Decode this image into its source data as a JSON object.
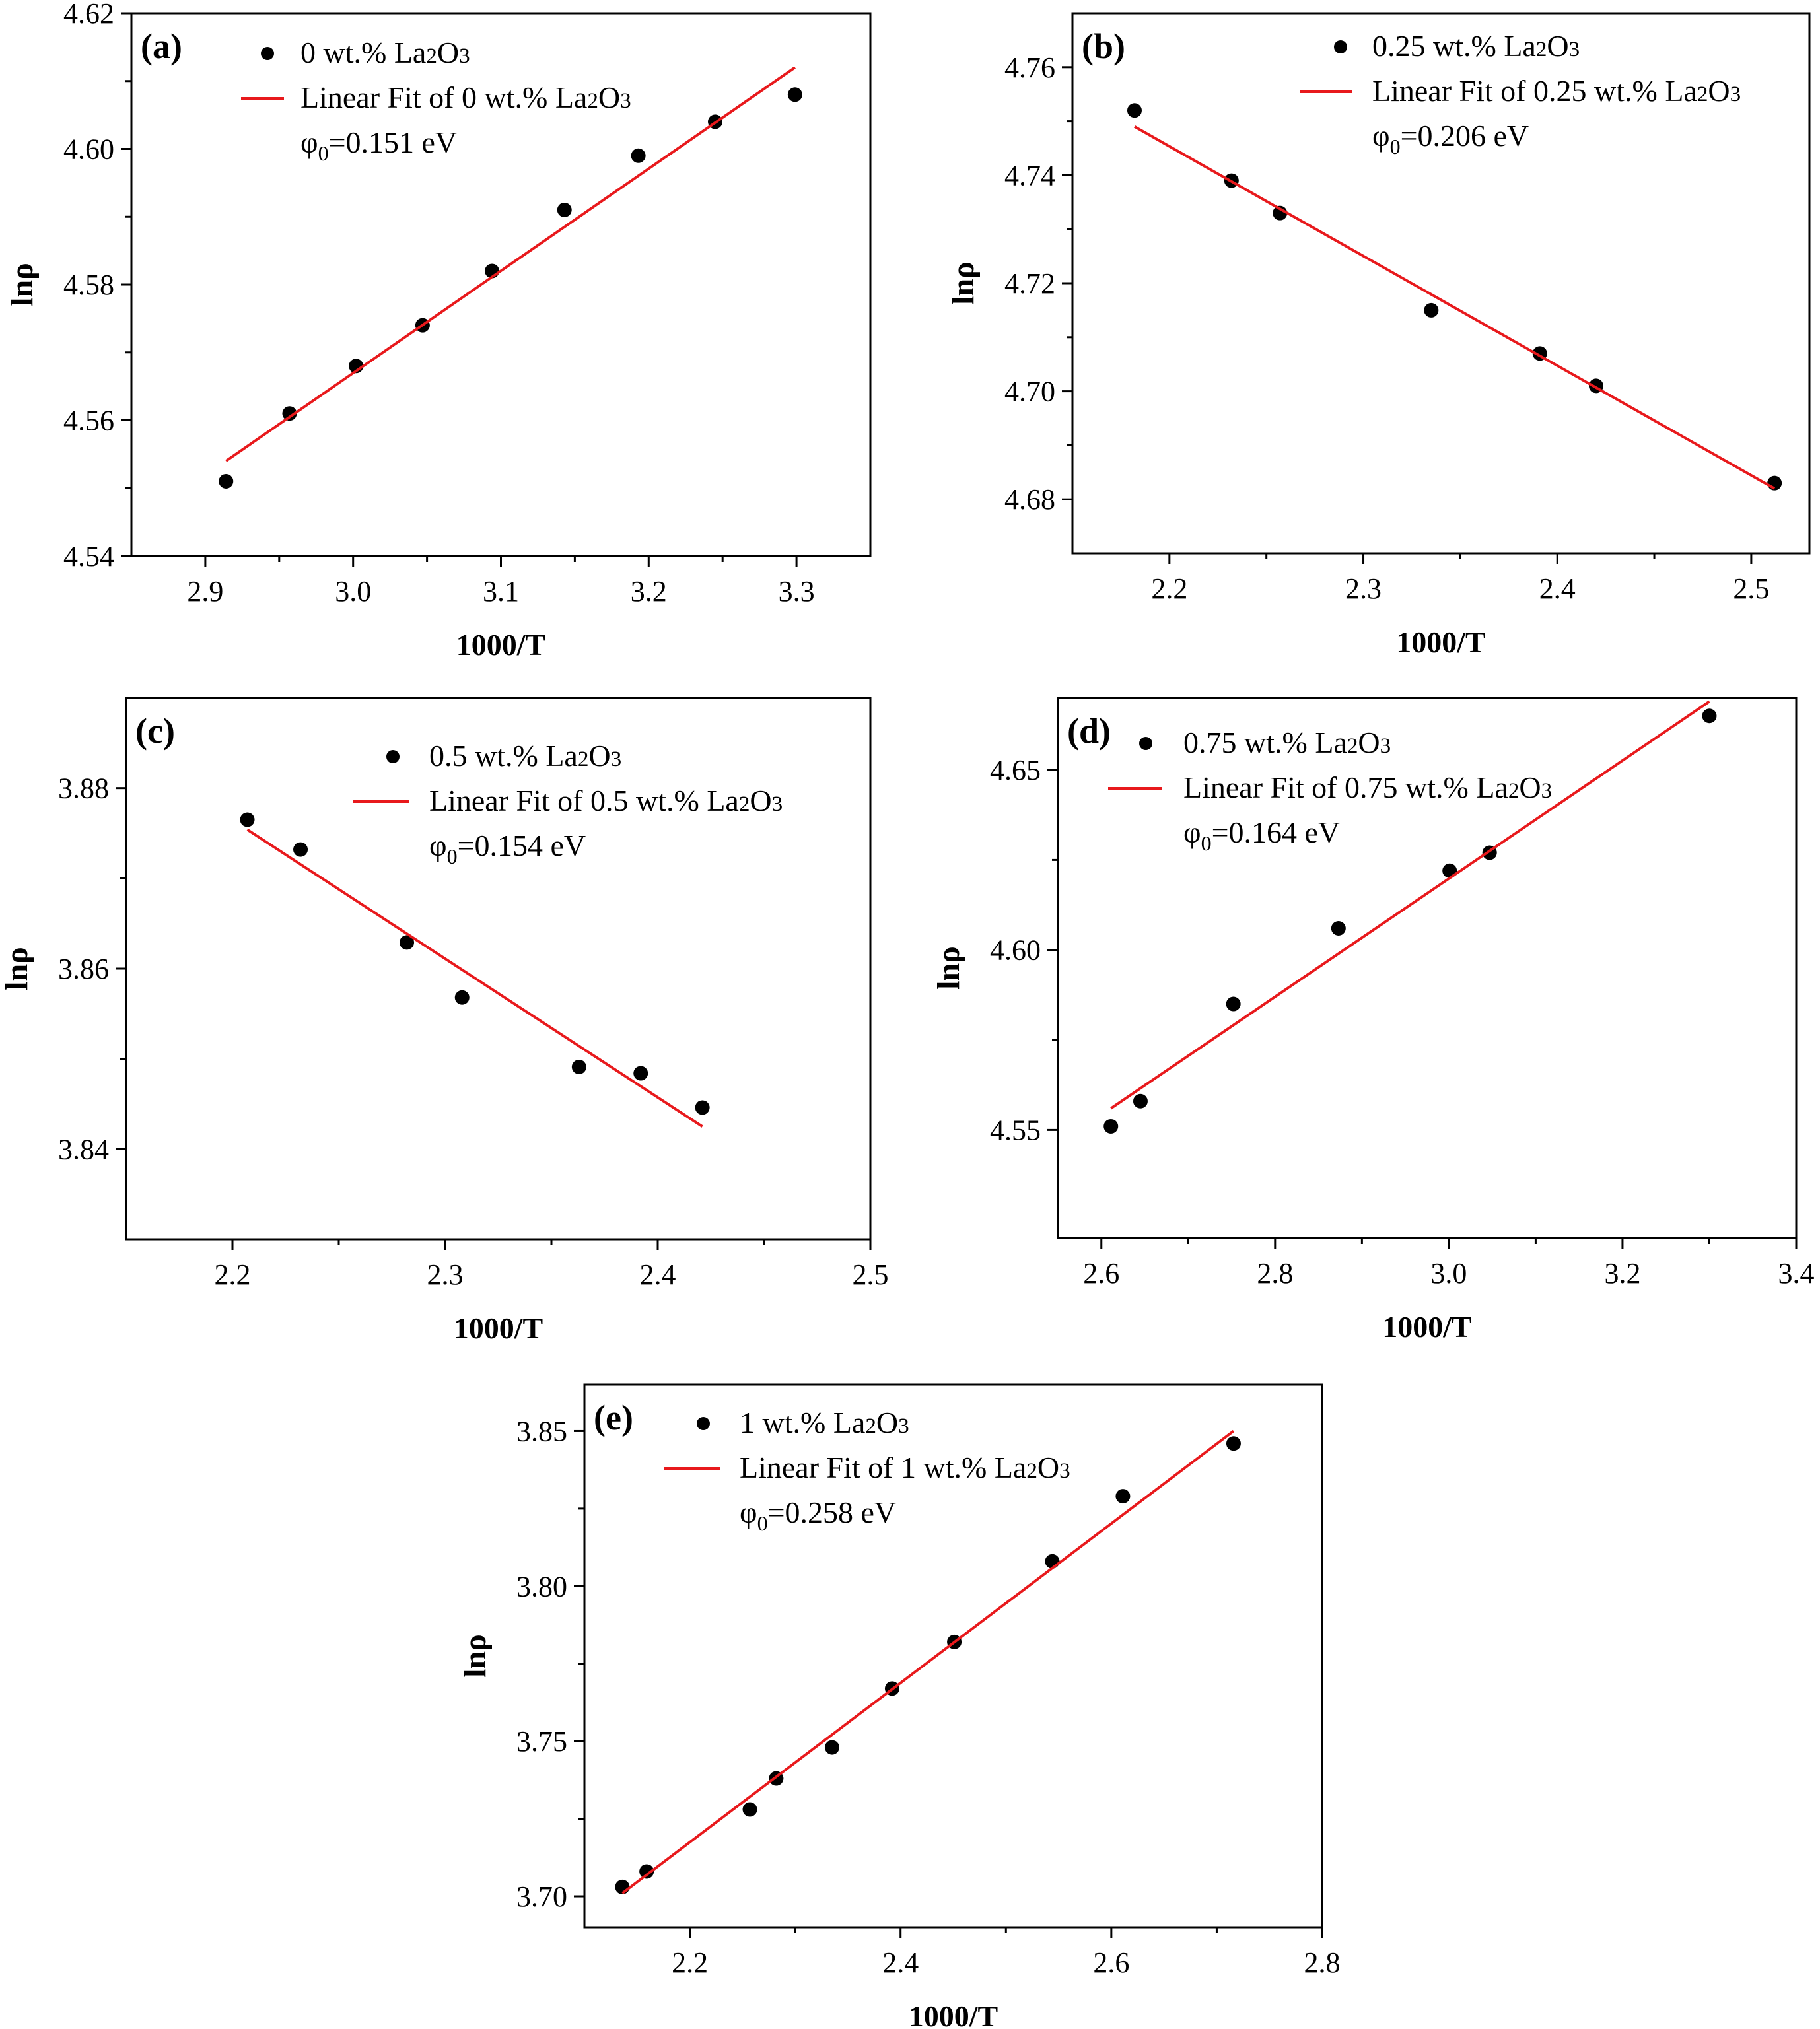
{
  "chart_data": [
    {
      "type": "scatter",
      "panel_label": "(a)",
      "xlabel": "1000/T",
      "ylabel": "lnρ",
      "xlim": [
        2.85,
        3.35
      ],
      "ylim": [
        4.54,
        4.62
      ],
      "x_ticks": [
        2.9,
        3.0,
        3.1,
        3.2,
        3.3
      ],
      "x_tick_labels": [
        "2.9",
        "3.0",
        "3.1",
        "3.2",
        "3.3"
      ],
      "y_ticks": [
        4.54,
        4.56,
        4.58,
        4.6,
        4.62
      ],
      "y_tick_labels": [
        "4.54",
        "4.56",
        "4.58",
        "4.60",
        "4.62"
      ],
      "series": [
        {
          "name": "0 wt.% La2O3",
          "kind": "scatter",
          "color": "#000000",
          "x": [
            2.914,
            2.957,
            3.002,
            3.047,
            3.094,
            3.143,
            3.193,
            3.245,
            3.299
          ],
          "y": [
            4.551,
            4.561,
            4.568,
            4.574,
            4.582,
            4.591,
            4.599,
            4.604,
            4.608
          ]
        },
        {
          "name": "Linear Fit of  0 wt.% La2O3",
          "kind": "line",
          "color": "#e8191c",
          "x": [
            2.914,
            3.299
          ],
          "y": [
            4.554,
            4.612
          ]
        }
      ],
      "annotation": "φ0=0.151 eV",
      "legend_position": "top-left"
    },
    {
      "type": "scatter",
      "panel_label": "(b)",
      "xlabel": "1000/T",
      "ylabel": "lnρ",
      "xlim": [
        2.15,
        2.53
      ],
      "ylim": [
        4.67,
        4.77
      ],
      "x_ticks": [
        2.2,
        2.3,
        2.4,
        2.5
      ],
      "x_tick_labels": [
        "2.2",
        "2.3",
        "2.4",
        "2.5"
      ],
      "y_ticks": [
        4.68,
        4.7,
        4.72,
        4.74,
        4.76
      ],
      "y_tick_labels": [
        "4.68",
        "4.70",
        "4.72",
        "4.74",
        "4.76"
      ],
      "series": [
        {
          "name": "0.25 wt.% La2O3",
          "kind": "scatter",
          "color": "#000000",
          "x": [
            2.182,
            2.232,
            2.257,
            2.335,
            2.391,
            2.42,
            2.512
          ],
          "y": [
            4.752,
            4.739,
            4.733,
            4.715,
            4.707,
            4.701,
            4.683
          ]
        },
        {
          "name": "Linear Fit of  0.25 wt.% La2O3",
          "kind": "line",
          "color": "#e8191c",
          "x": [
            2.182,
            2.512
          ],
          "y": [
            4.749,
            4.682
          ]
        }
      ],
      "annotation": "φ0=0.206 eV",
      "legend_position": "top-right"
    },
    {
      "type": "scatter",
      "panel_label": "(c)",
      "xlabel": "1000/T",
      "ylabel": "lnρ",
      "xlim": [
        2.15,
        2.5
      ],
      "ylim": [
        3.83,
        3.89
      ],
      "x_ticks": [
        2.2,
        2.3,
        2.4,
        2.5
      ],
      "x_tick_labels": [
        "2.2",
        "2.3",
        "2.4",
        "2.5"
      ],
      "y_ticks": [
        3.84,
        3.86,
        3.88
      ],
      "y_tick_labels": [
        "3.84",
        "3.86",
        "3.88"
      ],
      "series": [
        {
          "name": "0.5 wt.% La2O3",
          "kind": "scatter",
          "color": "#000000",
          "x": [
            2.207,
            2.232,
            2.282,
            2.308,
            2.363,
            2.392,
            2.421
          ],
          "y": [
            3.8765,
            3.8732,
            3.8629,
            3.8568,
            3.8491,
            3.8484,
            3.8446
          ]
        },
        {
          "name": "Linear Fit of  0.5 wt.% La2O3",
          "kind": "line",
          "color": "#e8191c",
          "x": [
            2.207,
            2.421
          ],
          "y": [
            3.8754,
            3.8425
          ]
        }
      ],
      "annotation": "φ0=0.154 eV",
      "legend_position": "top-right"
    },
    {
      "type": "scatter",
      "panel_label": "(d)",
      "xlabel": "1000/T",
      "ylabel": "lnρ",
      "xlim": [
        2.55,
        3.4
      ],
      "ylim": [
        4.52,
        4.67
      ],
      "x_ticks": [
        2.6,
        2.8,
        3.0,
        3.2,
        3.4
      ],
      "x_tick_labels": [
        "2.6",
        "2.8",
        "3.0",
        "3.2",
        "3.4"
      ],
      "y_ticks": [
        4.55,
        4.6,
        4.65
      ],
      "y_tick_labels": [
        "4.55",
        "4.60",
        "4.65"
      ],
      "series": [
        {
          "name": "0.75 wt.% La2O3",
          "kind": "scatter",
          "color": "#000000",
          "x": [
            2.611,
            2.645,
            2.752,
            2.873,
            3.001,
            3.047,
            3.3
          ],
          "y": [
            4.551,
            4.558,
            4.585,
            4.606,
            4.622,
            4.627,
            4.665
          ]
        },
        {
          "name": "Linear Fit of  0.75 wt.% La2O3",
          "kind": "line",
          "color": "#e8191c",
          "x": [
            2.611,
            3.3
          ],
          "y": [
            4.556,
            4.669
          ]
        }
      ],
      "annotation": "φ0=0.164 eV",
      "legend_position": "top-left"
    },
    {
      "type": "scatter",
      "panel_label": "(e)",
      "xlabel": "1000/T",
      "ylabel": "lnρ",
      "xlim": [
        2.1,
        2.8
      ],
      "ylim": [
        3.69,
        3.865
      ],
      "x_ticks": [
        2.2,
        2.4,
        2.6,
        2.8
      ],
      "x_tick_labels": [
        "2.2",
        "2.4",
        "2.6",
        "2.8"
      ],
      "y_ticks": [
        3.7,
        3.75,
        3.8,
        3.85
      ],
      "y_tick_labels": [
        "3.70",
        "3.75",
        "3.80",
        "3.85"
      ],
      "series": [
        {
          "name": "1 wt.% La2O3",
          "kind": "scatter",
          "color": "#000000",
          "x": [
            2.136,
            2.159,
            2.257,
            2.282,
            2.335,
            2.392,
            2.451,
            2.544,
            2.611,
            2.716
          ],
          "y": [
            3.703,
            3.708,
            3.728,
            3.738,
            3.748,
            3.767,
            3.782,
            3.808,
            3.829,
            3.846
          ]
        },
        {
          "name": "Linear Fit of  1 wt.% La2O3",
          "kind": "line",
          "color": "#e8191c",
          "x": [
            2.136,
            2.716
          ],
          "y": [
            3.701,
            3.85
          ]
        }
      ],
      "annotation": "φ0=0.258 eV",
      "legend_position": "top-left"
    }
  ]
}
